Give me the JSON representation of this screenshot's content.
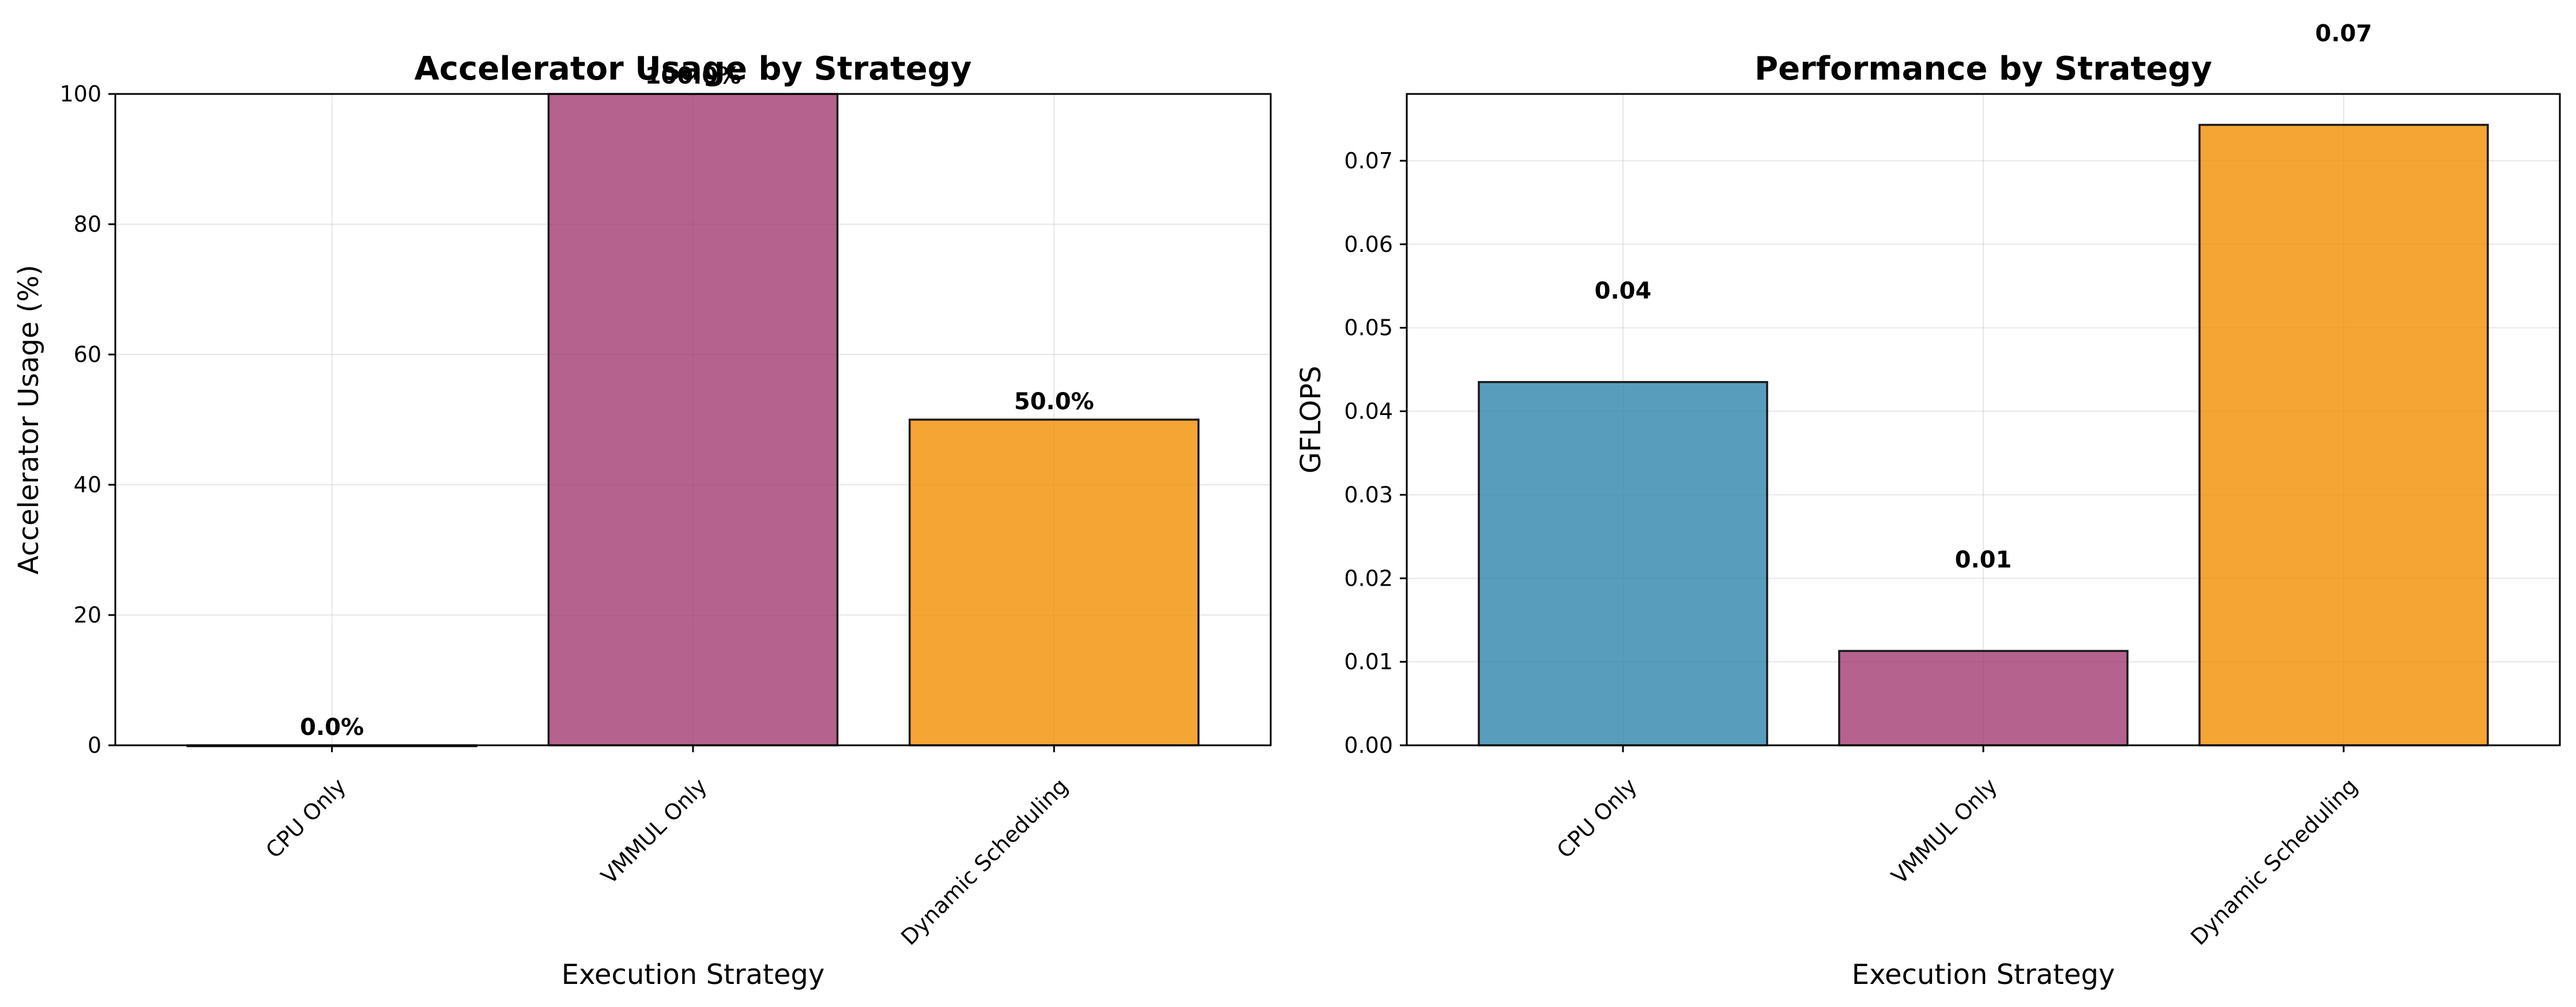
{
  "chart_data": [
    {
      "type": "bar",
      "title": "Accelerator Usage by Strategy",
      "xlabel": "Execution Strategy",
      "ylabel": "Accelerator Usage (%)",
      "categories": [
        "CPU Only",
        "VMMUL Only",
        "Dynamic Scheduling"
      ],
      "values": [
        0.0,
        100.0,
        50.0
      ],
      "value_labels": [
        "0.0%",
        "100.0%",
        "50.0%"
      ],
      "colors": [
        "#2E86AB",
        "#A23B72",
        "#F18F01"
      ],
      "bar_alpha": 0.8,
      "ylim": [
        0,
        100
      ],
      "yticks": [
        0,
        20,
        40,
        60,
        80,
        100
      ],
      "ytick_labels": [
        "0",
        "20",
        "40",
        "60",
        "80",
        "100"
      ],
      "grid": true
    },
    {
      "type": "bar",
      "title": "Performance by Strategy",
      "xlabel": "Execution Strategy",
      "ylabel": "GFLOPS",
      "categories": [
        "CPU Only",
        "VMMUL Only",
        "Dynamic Scheduling"
      ],
      "values": [
        0.0435,
        0.0113,
        0.0743
      ],
      "value_labels": [
        "0.04",
        "0.01",
        "0.07"
      ],
      "colors": [
        "#2E86AB",
        "#A23B72",
        "#F18F01"
      ],
      "bar_alpha": 0.8,
      "ylim": [
        0,
        0.078
      ],
      "yticks": [
        0,
        0.01,
        0.02,
        0.03,
        0.04,
        0.05,
        0.06,
        0.07
      ],
      "ytick_labels": [
        "0.00",
        "0.01",
        "0.02",
        "0.03",
        "0.04",
        "0.05",
        "0.06",
        "0.07"
      ],
      "grid": true
    }
  ]
}
